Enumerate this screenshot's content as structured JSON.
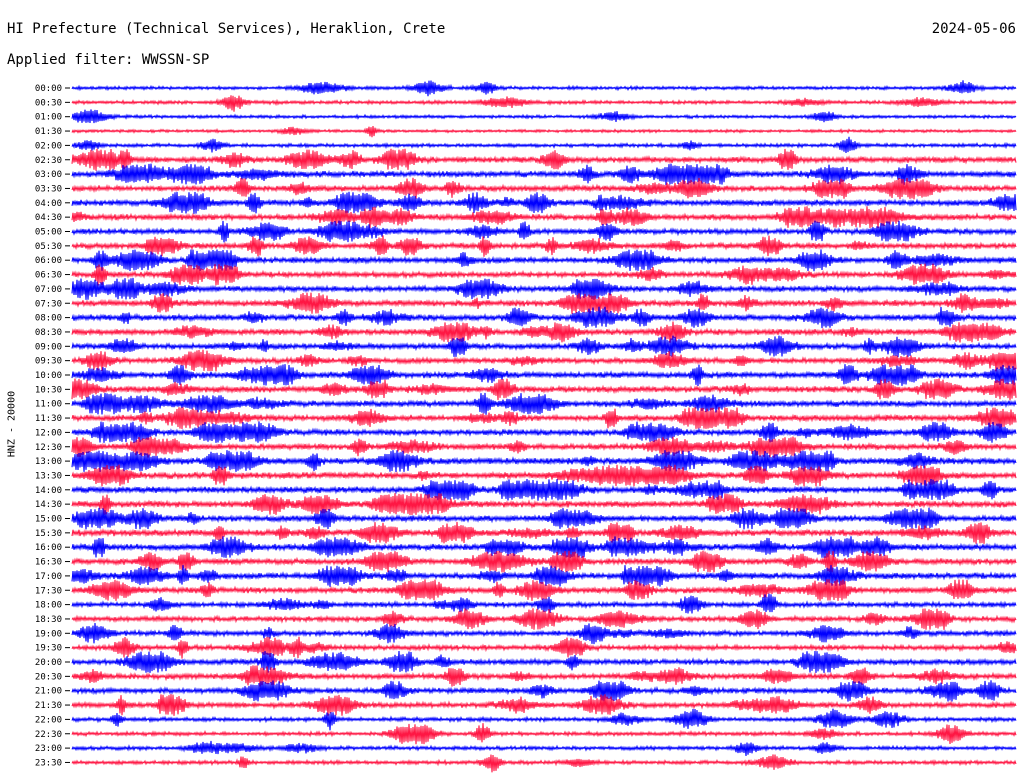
{
  "header": {
    "title": "HI Prefecture (Technical Services), Heraklion, Crete",
    "date": "2024-05-06",
    "filter": "Applied filter: WWSSN-SP"
  },
  "chart_data": {
    "type": "line",
    "title": "HI Prefecture (Technical Services), Heraklion, Crete",
    "date": "2024-05-06",
    "filter": "WWSSN-SP",
    "ylabel": "HNZ - 20000",
    "xlabel": "",
    "grid": false,
    "legend": "none",
    "colors": [
      "#0000ff",
      "#ff1744"
    ],
    "series": [
      {
        "label": "00:00",
        "color": "#0000ff",
        "activity": 0.25
      },
      {
        "label": "00:30",
        "color": "#ff1744",
        "activity": 0.3
      },
      {
        "label": "01:00",
        "color": "#0000ff",
        "activity": 0.2
      },
      {
        "label": "01:30",
        "color": "#ff1744",
        "activity": 0.15
      },
      {
        "label": "02:00",
        "color": "#0000ff",
        "activity": 0.3
      },
      {
        "label": "02:30",
        "color": "#ff1744",
        "activity": 0.8
      },
      {
        "label": "03:00",
        "color": "#0000ff",
        "activity": 0.85
      },
      {
        "label": "03:30",
        "color": "#ff1744",
        "activity": 0.75
      },
      {
        "label": "04:00",
        "color": "#0000ff",
        "activity": 0.85
      },
      {
        "label": "04:30",
        "color": "#ff1744",
        "activity": 0.8
      },
      {
        "label": "05:00",
        "color": "#0000ff",
        "activity": 0.7
      },
      {
        "label": "05:30",
        "color": "#ff1744",
        "activity": 0.75
      },
      {
        "label": "06:00",
        "color": "#0000ff",
        "activity": 0.8
      },
      {
        "label": "06:30",
        "color": "#ff1744",
        "activity": 0.7
      },
      {
        "label": "07:00",
        "color": "#0000ff",
        "activity": 0.75
      },
      {
        "label": "07:30",
        "color": "#ff1744",
        "activity": 0.8
      },
      {
        "label": "08:00",
        "color": "#0000ff",
        "activity": 0.85
      },
      {
        "label": "08:30",
        "color": "#ff1744",
        "activity": 0.8
      },
      {
        "label": "09:00",
        "color": "#0000ff",
        "activity": 0.75
      },
      {
        "label": "09:30",
        "color": "#ff1744",
        "activity": 0.7
      },
      {
        "label": "10:00",
        "color": "#0000ff",
        "activity": 0.85
      },
      {
        "label": "10:30",
        "color": "#ff1744",
        "activity": 0.85
      },
      {
        "label": "11:00",
        "color": "#0000ff",
        "activity": 0.85
      },
      {
        "label": "11:30",
        "color": "#ff1744",
        "activity": 0.8
      },
      {
        "label": "12:00",
        "color": "#0000ff",
        "activity": 0.8
      },
      {
        "label": "12:30",
        "color": "#ff1744",
        "activity": 0.85
      },
      {
        "label": "13:00",
        "color": "#0000ff",
        "activity": 0.95
      },
      {
        "label": "13:30",
        "color": "#ff1744",
        "activity": 0.9
      },
      {
        "label": "14:00",
        "color": "#0000ff",
        "activity": 0.9
      },
      {
        "label": "14:30",
        "color": "#ff1744",
        "activity": 0.9
      },
      {
        "label": "15:00",
        "color": "#0000ff",
        "activity": 0.85
      },
      {
        "label": "15:30",
        "color": "#ff1744",
        "activity": 0.9
      },
      {
        "label": "16:00",
        "color": "#0000ff",
        "activity": 0.9
      },
      {
        "label": "16:30",
        "color": "#ff1744",
        "activity": 0.85
      },
      {
        "label": "17:00",
        "color": "#0000ff",
        "activity": 0.85
      },
      {
        "label": "17:30",
        "color": "#ff1744",
        "activity": 0.8
      },
      {
        "label": "18:00",
        "color": "#0000ff",
        "activity": 0.6
      },
      {
        "label": "18:30",
        "color": "#ff1744",
        "activity": 0.65
      },
      {
        "label": "19:00",
        "color": "#0000ff",
        "activity": 0.65
      },
      {
        "label": "19:30",
        "color": "#ff1744",
        "activity": 0.6
      },
      {
        "label": "20:00",
        "color": "#0000ff",
        "activity": 0.7
      },
      {
        "label": "20:30",
        "color": "#ff1744",
        "activity": 0.7
      },
      {
        "label": "21:00",
        "color": "#0000ff",
        "activity": 0.7
      },
      {
        "label": "21:30",
        "color": "#ff1744",
        "activity": 0.65
      },
      {
        "label": "22:00",
        "color": "#0000ff",
        "activity": 0.4
      },
      {
        "label": "22:30",
        "color": "#ff1744",
        "activity": 0.35
      },
      {
        "label": "23:00",
        "color": "#0000ff",
        "activity": 0.35
      },
      {
        "label": "23:30",
        "color": "#ff1744",
        "activity": 0.35
      }
    ]
  }
}
